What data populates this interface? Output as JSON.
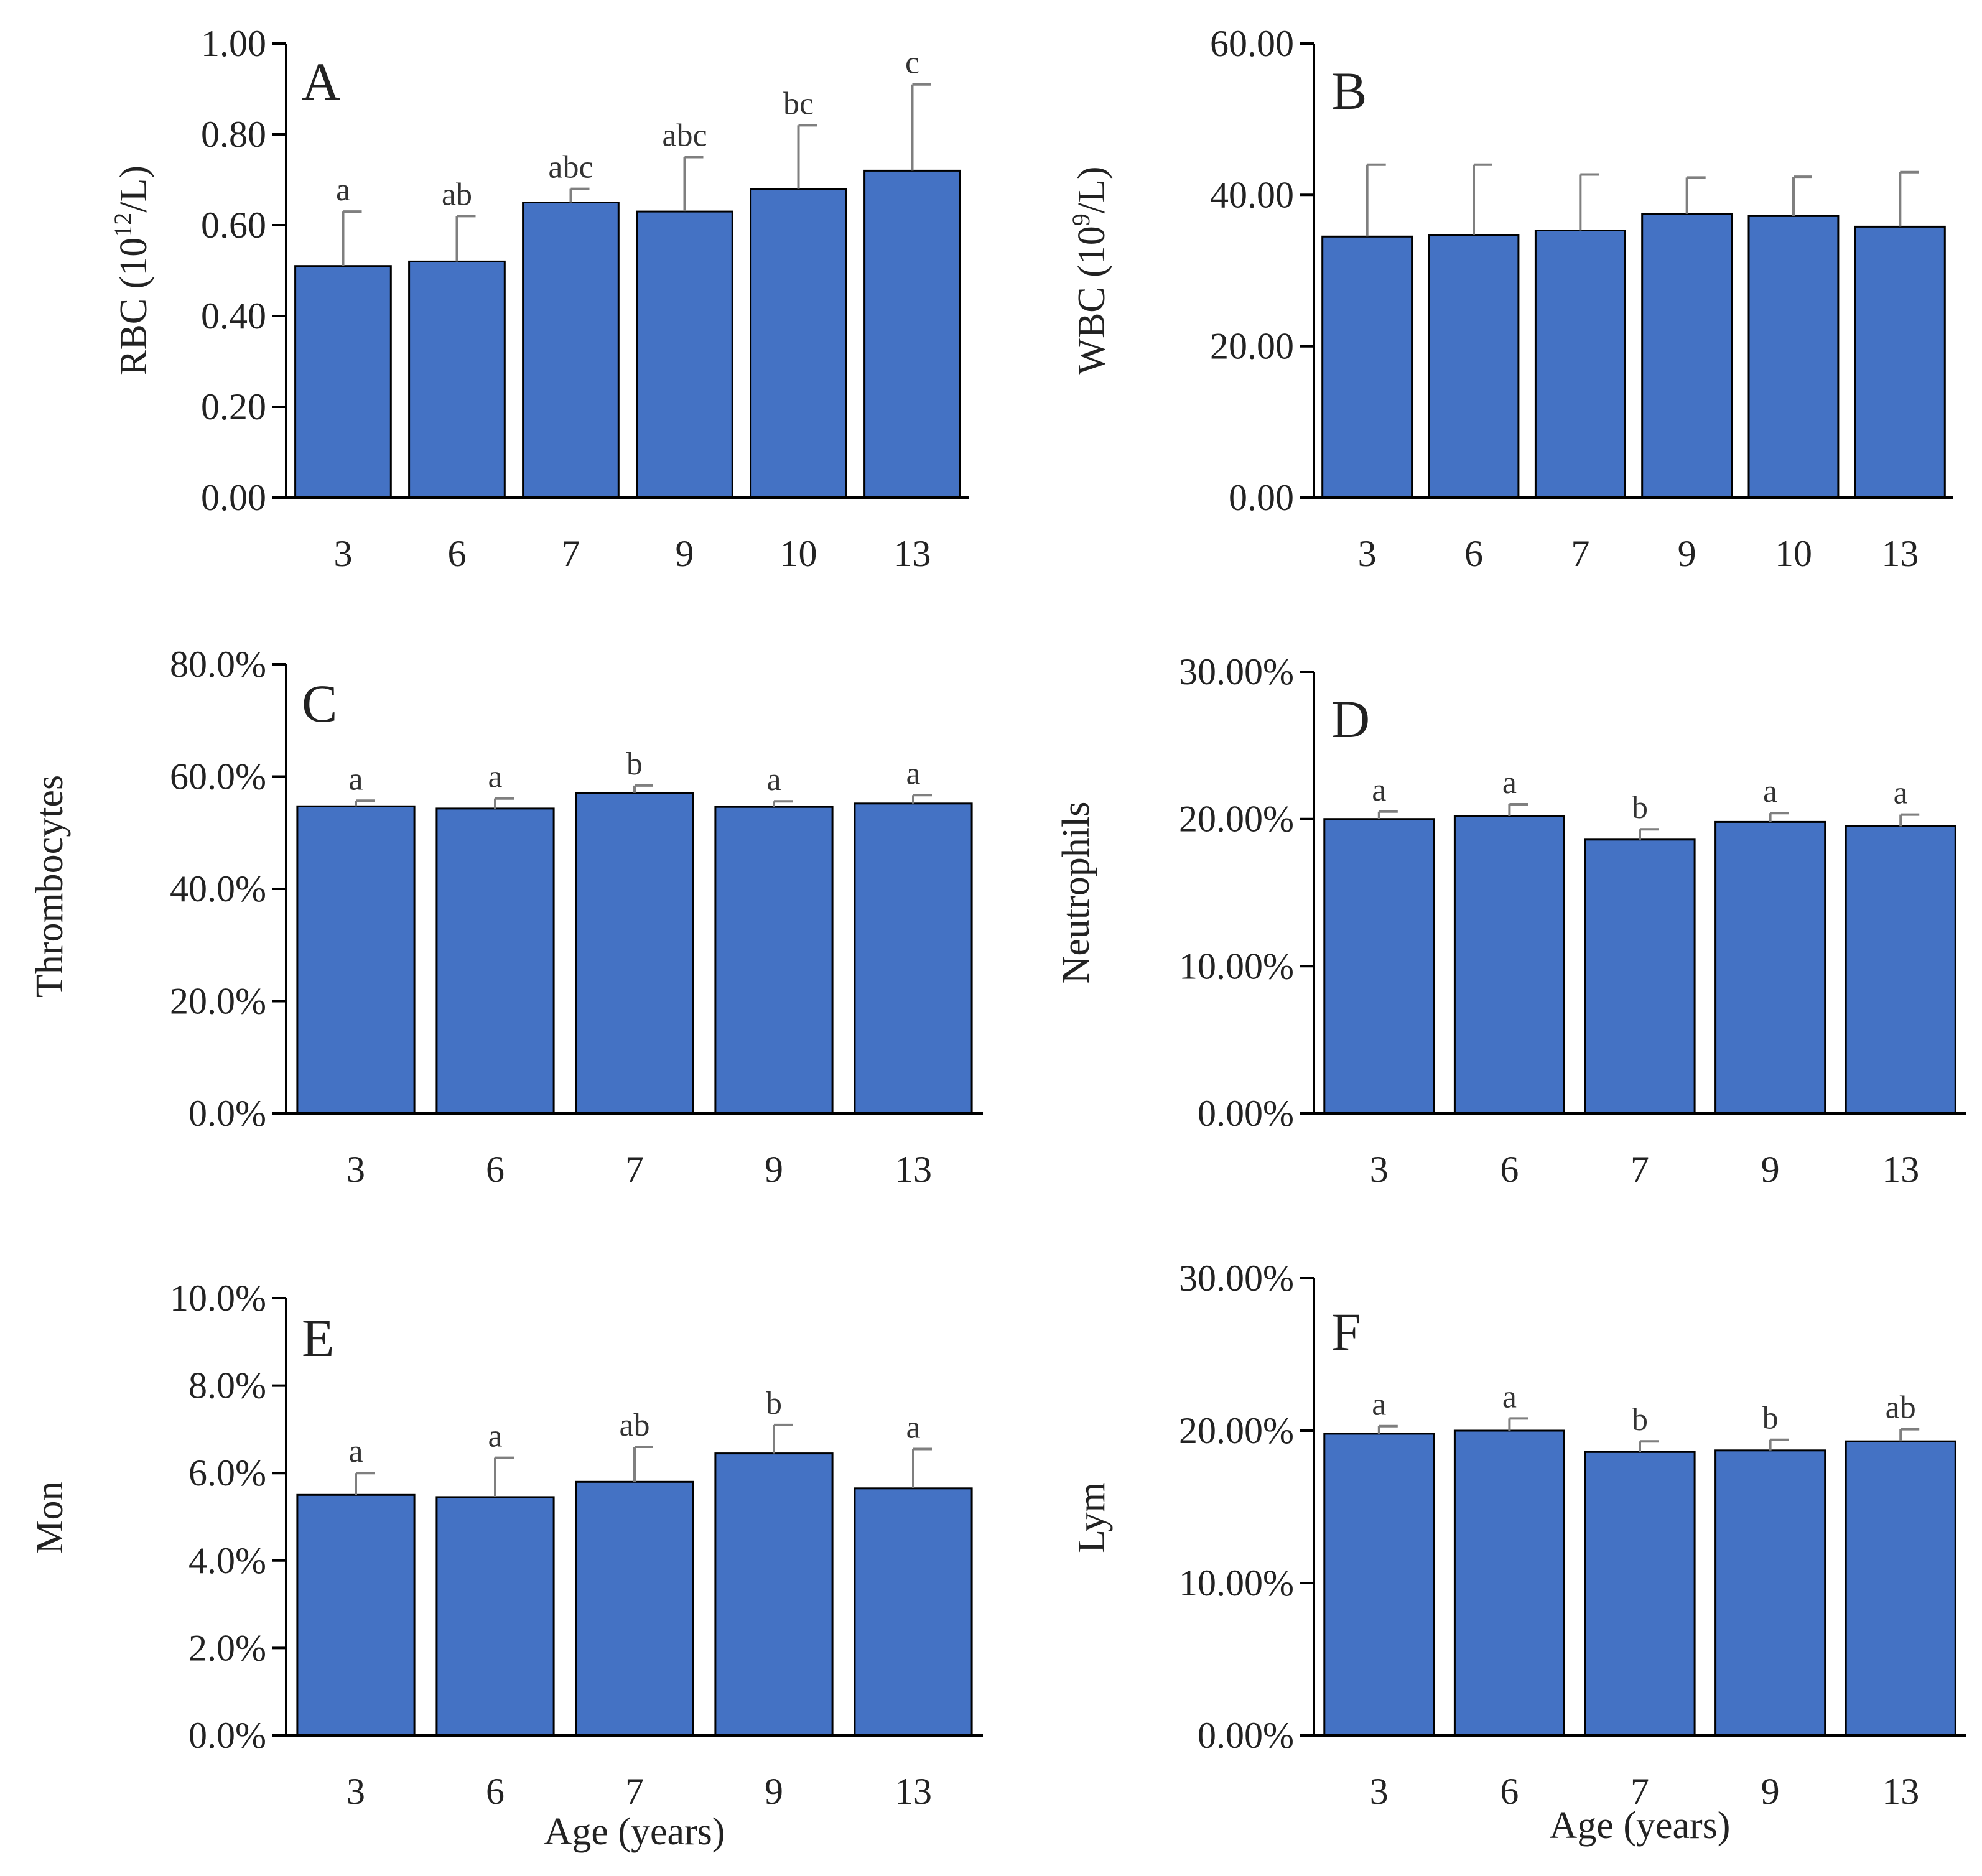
{
  "figure": {
    "bar_color": "#4472C4",
    "bar_edge_color": "#000000",
    "axis_color": "#000000",
    "error_bar_color": "#7f7f7f",
    "xlabel_bottom_left": "Age (years)",
    "xlabel_bottom_right": "Age (years)"
  },
  "chart_data": [
    {
      "panel": "A",
      "type": "bar",
      "ylabel_main": "RBC (10",
      "ylabel_sup": "12",
      "ylabel_tail": "/L)",
      "categories": [
        "3",
        "6",
        "7",
        "9",
        "10",
        "13"
      ],
      "values": [
        0.51,
        0.52,
        0.65,
        0.63,
        0.68,
        0.72
      ],
      "errors": [
        0.12,
        0.1,
        0.03,
        0.12,
        0.14,
        0.19
      ],
      "sig_letters": [
        "a",
        "ab",
        "abc",
        "abc",
        "bc",
        "c"
      ],
      "ylim": [
        0,
        1.0
      ],
      "yticks": [
        0,
        0.2,
        0.4,
        0.6,
        0.8,
        1.0
      ],
      "ytick_labels": [
        "0.00",
        "0.20",
        "0.40",
        "0.60",
        "0.80",
        "1.00"
      ],
      "xlabel": ""
    },
    {
      "panel": "B",
      "type": "bar",
      "ylabel_main": "WBC (10",
      "ylabel_sup": "9",
      "ylabel_tail": "/L)",
      "categories": [
        "3",
        "6",
        "7",
        "9",
        "10",
        "13"
      ],
      "values": [
        34.5,
        34.7,
        35.3,
        37.5,
        37.2,
        35.8
      ],
      "errors": [
        9.5,
        9.3,
        7.4,
        4.8,
        5.2,
        7.2
      ],
      "sig_letters": [],
      "ylim": [
        0,
        60
      ],
      "yticks": [
        0,
        20,
        40,
        60
      ],
      "ytick_labels": [
        "0.00",
        "20.00",
        "40.00",
        "60.00"
      ],
      "xlabel": ""
    },
    {
      "panel": "C",
      "type": "bar",
      "ylabel_main": "Thrombocytes",
      "ylabel_sup": "",
      "ylabel_tail": "",
      "categories": [
        "3",
        "6",
        "7",
        "9",
        "13"
      ],
      "values": [
        54.7,
        54.3,
        57.1,
        54.6,
        55.2
      ],
      "errors": [
        1.0,
        1.8,
        1.3,
        1.0,
        1.5
      ],
      "sig_letters": [
        "a",
        "a",
        "b",
        "a",
        "a"
      ],
      "ylim": [
        0,
        80
      ],
      "yticks": [
        0,
        20,
        40,
        60,
        80
      ],
      "ytick_labels": [
        "0.0%",
        "20.0%",
        "40.0%",
        "60.0%",
        "80.0%"
      ],
      "xlabel": ""
    },
    {
      "panel": "D",
      "type": "bar",
      "ylabel_main": "Neutrophils",
      "ylabel_sup": "",
      "ylabel_tail": "",
      "categories": [
        "3",
        "6",
        "7",
        "9",
        "13"
      ],
      "values": [
        20.0,
        20.2,
        18.6,
        19.8,
        19.5
      ],
      "errors": [
        0.5,
        0.8,
        0.7,
        0.6,
        0.8
      ],
      "sig_letters": [
        "a",
        "a",
        "b",
        "a",
        "a"
      ],
      "ylim": [
        0,
        30
      ],
      "yticks": [
        0,
        10,
        20,
        30
      ],
      "ytick_labels": [
        "0.00%",
        "10.00%",
        "20.00%",
        "30.00%"
      ],
      "xlabel": ""
    },
    {
      "panel": "E",
      "type": "bar",
      "ylabel_main": "Mon",
      "ylabel_sup": "",
      "ylabel_tail": "",
      "categories": [
        "3",
        "6",
        "7",
        "9",
        "13"
      ],
      "values": [
        5.5,
        5.45,
        5.8,
        6.45,
        5.65
      ],
      "errors": [
        0.5,
        0.9,
        0.8,
        0.65,
        0.9
      ],
      "sig_letters": [
        "a",
        "a",
        "ab",
        "b",
        "a"
      ],
      "ylim": [
        0,
        10
      ],
      "yticks": [
        0,
        2,
        4,
        6,
        8,
        10
      ],
      "ytick_labels": [
        "0.0%",
        "2.0%",
        "4.0%",
        "6.0%",
        "8.0%",
        "10.0%"
      ],
      "xlabel": "Age (years)"
    },
    {
      "panel": "F",
      "type": "bar",
      "ylabel_main": "Lym",
      "ylabel_sup": "",
      "ylabel_tail": "",
      "categories": [
        "3",
        "6",
        "7",
        "9",
        "13"
      ],
      "values": [
        19.8,
        20.0,
        18.6,
        18.7,
        19.3
      ],
      "errors": [
        0.5,
        0.8,
        0.7,
        0.7,
        0.8
      ],
      "sig_letters": [
        "a",
        "a",
        "b",
        "b",
        "ab"
      ],
      "ylim": [
        0,
        30
      ],
      "yticks": [
        0,
        10,
        20,
        30
      ],
      "ytick_labels": [
        "0.00%",
        "10.00%",
        "20.00%",
        "30.00%"
      ],
      "xlabel": "Age (years)"
    }
  ]
}
